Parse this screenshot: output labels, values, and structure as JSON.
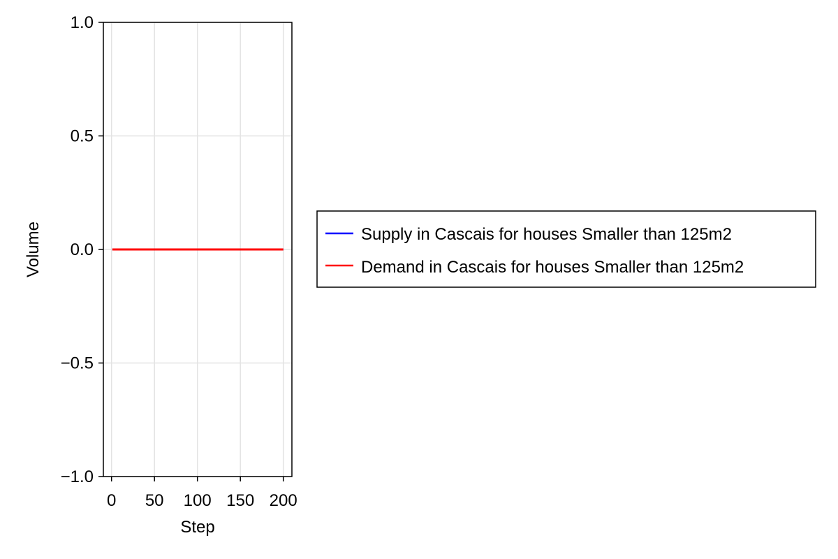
{
  "chart_data": {
    "type": "line",
    "xlabel": "Step",
    "ylabel": "Volume",
    "xlim": [
      -9.5,
      210
    ],
    "ylim": [
      -1.0,
      1.0
    ],
    "x_ticks": [
      0,
      50,
      100,
      150,
      200
    ],
    "x_tick_labels": [
      "0",
      "50",
      "100",
      "150",
      "200"
    ],
    "y_ticks": [
      -1.0,
      -0.5,
      0.0,
      0.5,
      1.0
    ],
    "y_tick_labels": [
      "−1.0",
      "−0.5",
      "0.0",
      "0.5",
      "1.0"
    ],
    "grid": true,
    "legend_position": "right",
    "series": [
      {
        "name": "Supply in Cascais for houses Smaller than 125m2",
        "color": "#0000ff",
        "x": [
          1,
          200
        ],
        "values": [
          0,
          0
        ]
      },
      {
        "name": "Demand in Cascais for houses Smaller than 125m2",
        "color": "#ff0000",
        "x": [
          1,
          200
        ],
        "values": [
          0,
          0
        ]
      }
    ]
  }
}
